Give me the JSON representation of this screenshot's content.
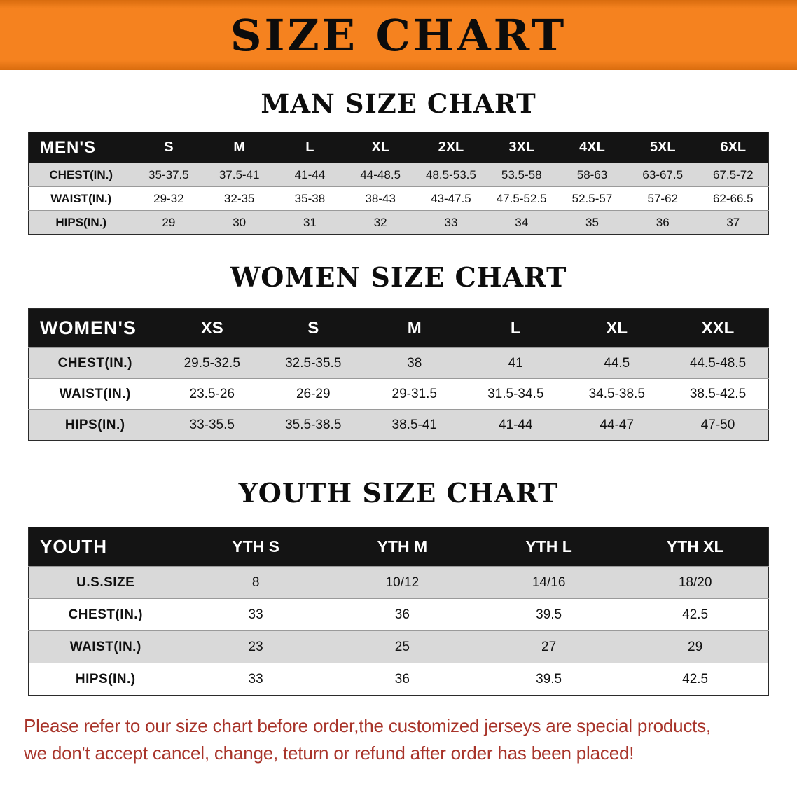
{
  "banner": {
    "title": "SIZE CHART"
  },
  "headings": {
    "men": "MAN SIZE CHART",
    "women": "WOMEN SIZE CHART",
    "youth": "YOUTH SIZE CHART"
  },
  "tables": {
    "men": {
      "header": [
        "MEN'S",
        "S",
        "M",
        "L",
        "XL",
        "2XL",
        "3XL",
        "4XL",
        "5XL",
        "6XL"
      ],
      "rows": [
        [
          "CHEST(IN.)",
          "35-37.5",
          "37.5-41",
          "41-44",
          "44-48.5",
          "48.5-53.5",
          "53.5-58",
          "58-63",
          "63-67.5",
          "67.5-72"
        ],
        [
          "WAIST(IN.)",
          "29-32",
          "32-35",
          "35-38",
          "38-43",
          "43-47.5",
          "47.5-52.5",
          "52.5-57",
          "57-62",
          "62-66.5"
        ],
        [
          "HIPS(IN.)",
          "29",
          "30",
          "31",
          "32",
          "33",
          "34",
          "35",
          "36",
          "37"
        ]
      ]
    },
    "women": {
      "header": [
        "WOMEN'S",
        "XS",
        "S",
        "M",
        "L",
        "XL",
        "XXL"
      ],
      "rows": [
        [
          "CHEST(IN.)",
          "29.5-32.5",
          "32.5-35.5",
          "38",
          "41",
          "44.5",
          "44.5-48.5"
        ],
        [
          "WAIST(IN.)",
          "23.5-26",
          "26-29",
          "29-31.5",
          "31.5-34.5",
          "34.5-38.5",
          "38.5-42.5"
        ],
        [
          "HIPS(IN.)",
          "33-35.5",
          "35.5-38.5",
          "38.5-41",
          "41-44",
          "44-47",
          "47-50"
        ]
      ]
    },
    "youth": {
      "header": [
        "YOUTH",
        "YTH S",
        "YTH M",
        "YTH L",
        "YTH XL"
      ],
      "rows": [
        [
          "U.S.SIZE",
          "8",
          "10/12",
          "14/16",
          "18/20"
        ],
        [
          "CHEST(IN.)",
          "33",
          "36",
          "39.5",
          "42.5"
        ],
        [
          "WAIST(IN.)",
          "23",
          "25",
          "27",
          "29"
        ],
        [
          "HIPS(IN.)",
          "33",
          "36",
          "39.5",
          "42.5"
        ]
      ]
    }
  },
  "disclaimer": {
    "line1": "Please refer to our size chart before order,the customized jerseys are special products,",
    "line2": "we don't accept cancel, change, teturn or refund after order has been placed!"
  },
  "colors": {
    "banner_orange": "#f5821f",
    "banner_orange_dark": "#d96c0e",
    "header_black": "#141414",
    "row_gray": "#d9d9d9",
    "disclaimer_red": "#a8342a"
  }
}
